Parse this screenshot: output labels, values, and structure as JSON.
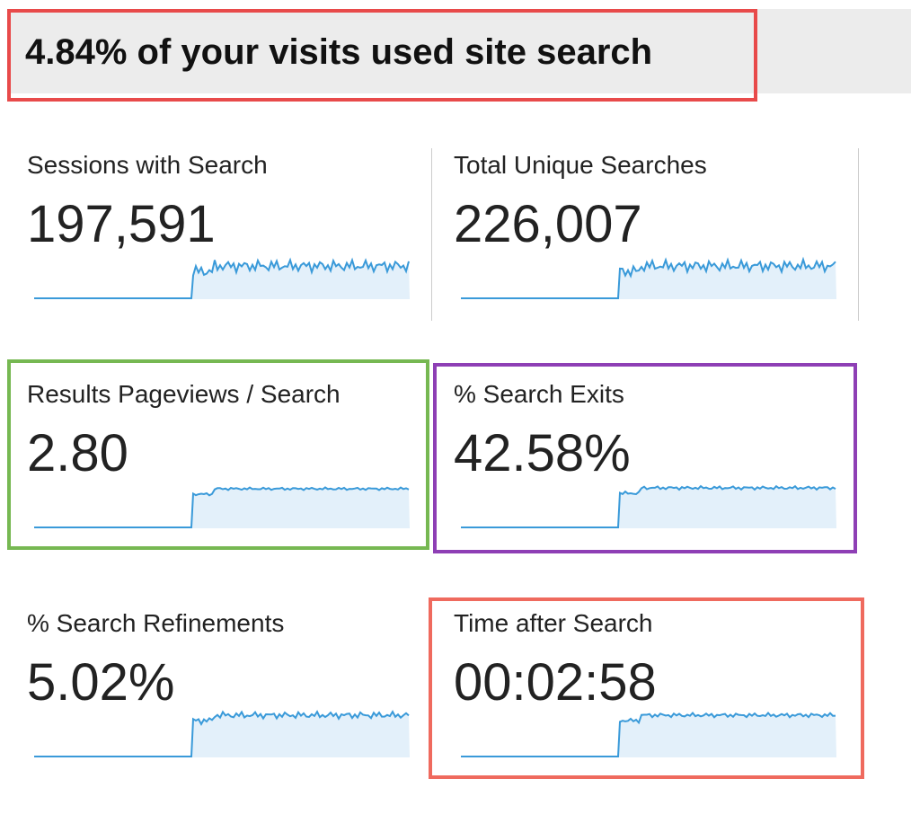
{
  "header": {
    "title": "4.84% of your visits used site search"
  },
  "metrics": [
    {
      "label": "Sessions with Search",
      "value": "197,591"
    },
    {
      "label": "Total Unique Searches",
      "value": "226,007"
    },
    {
      "label": "Results Pageviews / Search",
      "value": "2.80"
    },
    {
      "label": "% Search Exits",
      "value": "42.58%"
    },
    {
      "label": "% Search Refinements",
      "value": "5.02%"
    },
    {
      "label": "Time after Search",
      "value": "00:02:58"
    }
  ]
}
